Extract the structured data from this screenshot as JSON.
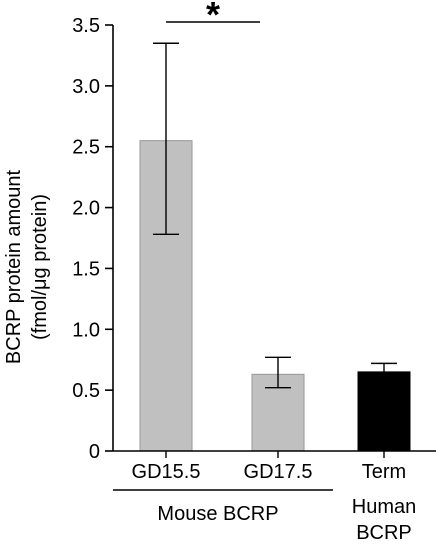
{
  "chart_data": {
    "type": "bar",
    "categories": [
      "GD15.5",
      "GD17.5",
      "Term"
    ],
    "values": [
      2.55,
      0.63,
      0.65
    ],
    "error_upper": [
      3.35,
      0.77,
      0.72
    ],
    "error_lower": [
      1.78,
      0.52,
      0.65
    ],
    "bar_colors": [
      "#c0c0c0",
      "#c0c0c0",
      "#000000"
    ],
    "ylabel_lines": [
      "BCRP protein amount",
      "(fmol/μg protein)"
    ],
    "ylim": [
      0,
      3.5
    ],
    "yticks": [
      "0",
      "0.5",
      "1.0",
      "1.5",
      "2.0",
      "2.5",
      "3.0",
      "3.5"
    ],
    "ytick_values": [
      0,
      0.5,
      1.0,
      1.5,
      2.0,
      2.5,
      3.0,
      3.5
    ],
    "group_labels": {
      "mouse": "Mouse BCRP",
      "human_lines": [
        "Human",
        "BCRP"
      ]
    },
    "significance": {
      "between": [
        "GD15.5",
        "GD17.5"
      ],
      "mark": "*"
    },
    "grid": false
  }
}
